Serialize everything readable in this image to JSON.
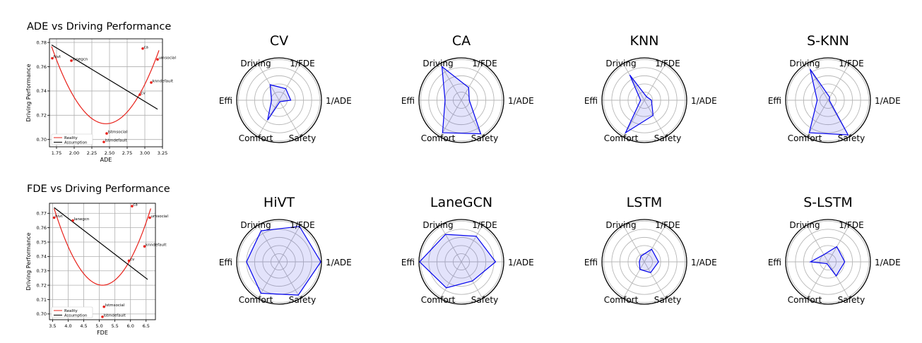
{
  "chart_data": [
    {
      "type": "scatter",
      "title": "ADE vs Driving Performance",
      "xlabel": "ADE",
      "ylabel": "Driving Performance",
      "xlim": [
        1.65,
        3.25
      ],
      "ylim": [
        0.694,
        0.783
      ],
      "xticks": [
        "1.75",
        "2.00",
        "2.25",
        "2.50",
        "2.75",
        "3.00",
        "3.25"
      ],
      "yticks": [
        "0.70",
        "0.72",
        "0.74",
        "0.76",
        "0.78"
      ],
      "grid": true,
      "legend": "lower-left",
      "points": [
        {
          "label": "hivt",
          "x": 1.69,
          "y": 0.767
        },
        {
          "label": "lanegcn",
          "x": 1.96,
          "y": 0.765
        },
        {
          "label": "ca",
          "x": 2.97,
          "y": 0.775
        },
        {
          "label": "umsocial",
          "x": 3.18,
          "y": 0.766
        },
        {
          "label": "knndefault",
          "x": 3.09,
          "y": 0.747
        },
        {
          "label": "cv",
          "x": 2.93,
          "y": 0.737
        },
        {
          "label": "lstmsocial",
          "x": 2.46,
          "y": 0.705
        },
        {
          "label": "lstmdefault",
          "x": 2.42,
          "y": 0.698
        }
      ],
      "series": [
        {
          "name": "Reality",
          "kind": "quadratic",
          "x_range": [
            1.68,
            3.2
          ],
          "vertex": [
            2.45,
            0.713
          ],
          "a": 0.1075,
          "color": "#e8211a"
        },
        {
          "name": "Assumption",
          "kind": "linear",
          "x_range": [
            1.68,
            3.18
          ],
          "endpoints": [
            [
              1.68,
              0.778
            ],
            [
              3.18,
              0.725
            ]
          ],
          "color": "#000000"
        }
      ]
    },
    {
      "type": "scatter",
      "title": "FDE vs Driving Performance",
      "xlabel": "FDE",
      "ylabel": "Driving Performance",
      "xlim": [
        3.4,
        6.8
      ],
      "ylim": [
        0.696,
        0.777
      ],
      "xticks": [
        "3.5",
        "4.0",
        "4.5",
        "5.0",
        "5.5",
        "6.0",
        "6.5"
      ],
      "yticks": [
        "0.70",
        "0.71",
        "0.72",
        "0.73",
        "0.74",
        "0.75",
        "0.76",
        "0.77"
      ],
      "grid": true,
      "legend": "lower-left",
      "points": [
        {
          "label": "hivt",
          "x": 3.55,
          "y": 0.767
        },
        {
          "label": "lanegcn",
          "x": 4.15,
          "y": 0.765
        },
        {
          "label": "ca",
          "x": 6.05,
          "y": 0.775
        },
        {
          "label": "umsocial",
          "x": 6.62,
          "y": 0.767
        },
        {
          "label": "knndefault",
          "x": 6.45,
          "y": 0.747
        },
        {
          "label": "cv",
          "x": 5.95,
          "y": 0.737
        },
        {
          "label": "lstmsocial",
          "x": 5.15,
          "y": 0.705
        },
        {
          "label": "lstmdefault",
          "x": 5.1,
          "y": 0.698
        }
      ],
      "series": [
        {
          "name": "Reality",
          "kind": "quadratic",
          "x_range": [
            3.55,
            6.65
          ],
          "vertex": [
            5.1,
            0.72
          ],
          "a": 0.0222,
          "color": "#e8211a"
        },
        {
          "name": "Assumption",
          "kind": "linear",
          "x_range": [
            3.55,
            6.55
          ],
          "endpoints": [
            [
              3.55,
              0.774
            ],
            [
              6.55,
              0.724
            ]
          ],
          "color": "#000000"
        }
      ]
    },
    {
      "type": "radar",
      "title": "CV",
      "axes": [
        "Driving",
        "1/FDE",
        "1/ADE",
        "Safety",
        "Comfort",
        "Effi"
      ],
      "rmax": 1,
      "rings": 5,
      "values": [
        0.43,
        0.32,
        0.28,
        0.04,
        0.55,
        0.18
      ],
      "color": "#0000ee"
    },
    {
      "type": "radar",
      "title": "CA",
      "axes": [
        "Driving",
        "1/FDE",
        "1/ADE",
        "Safety",
        "Comfort",
        "Effi"
      ],
      "rmax": 1,
      "rings": 5,
      "values": [
        0.93,
        0.35,
        0.19,
        0.93,
        0.9,
        0.39
      ],
      "color": "#0000ee"
    },
    {
      "type": "radar",
      "title": "KNN",
      "axes": [
        "Driving",
        "1/FDE",
        "1/ADE",
        "Safety",
        "Comfort",
        "Effi"
      ],
      "rmax": 1,
      "rings": 5,
      "values": [
        0.7,
        0.1,
        0.17,
        0.42,
        0.9,
        0.09
      ],
      "color": "#0000ee"
    },
    {
      "type": "radar",
      "title": "S-KNN",
      "axes": [
        "Driving",
        "1/FDE",
        "1/ADE",
        "Safety",
        "Comfort",
        "Effi"
      ],
      "rmax": 1,
      "rings": 5,
      "values": [
        0.86,
        0.08,
        0.03,
        0.96,
        0.9,
        0.26
      ],
      "color": "#0000ee"
    },
    {
      "type": "radar",
      "title": "HiVT",
      "axes": [
        "Driving",
        "1/FDE",
        "1/ADE",
        "Safety",
        "Comfort",
        "Effi"
      ],
      "rmax": 1,
      "rings": 5,
      "values": [
        0.86,
        0.98,
        1.0,
        0.92,
        0.87,
        0.78
      ],
      "color": "#0000ee"
    },
    {
      "type": "radar",
      "title": "LaneGCN",
      "axes": [
        "Driving",
        "1/FDE",
        "1/ADE",
        "Safety",
        "Comfort",
        "Effi"
      ],
      "rmax": 1,
      "rings": 5,
      "values": [
        0.76,
        0.71,
        0.82,
        0.53,
        0.72,
        1.0
      ],
      "color": "#0000ee"
    },
    {
      "type": "radar",
      "title": "LSTM",
      "axes": [
        "Driving",
        "1/FDE",
        "1/ADE",
        "Safety",
        "Comfort",
        "Effi"
      ],
      "rmax": 1,
      "rings": 5,
      "values": [
        0.16,
        0.35,
        0.34,
        0.3,
        0.21,
        0.12
      ],
      "color": "#0000ee"
    },
    {
      "type": "radar",
      "title": "S-LSTM",
      "axes": [
        "Driving",
        "1/FDE",
        "1/ADE",
        "Safety",
        "Comfort",
        "Effi"
      ],
      "rmax": 1,
      "rings": 5,
      "values": [
        0.2,
        0.42,
        0.4,
        0.39,
        0.05,
        0.42
      ],
      "color": "#0000ee"
    }
  ]
}
